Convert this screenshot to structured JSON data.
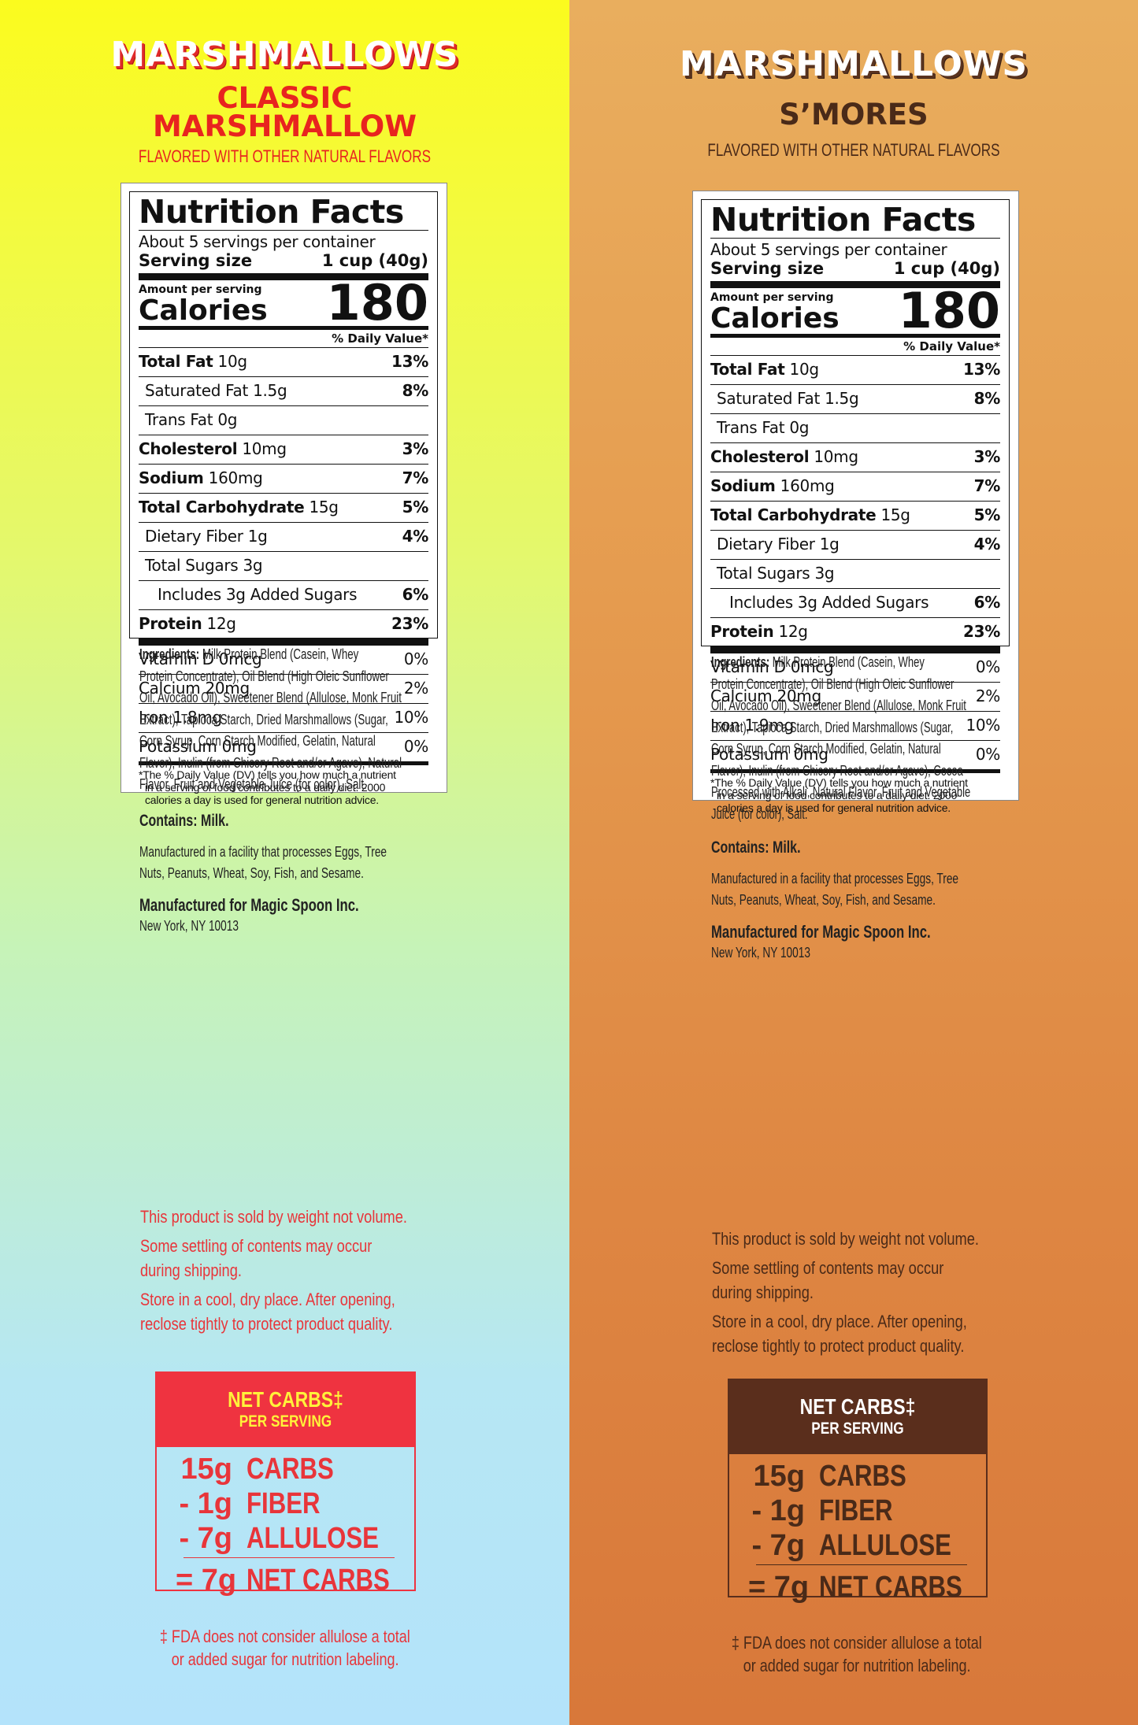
{
  "panels": [
    {
      "brand": "MARSHMALLOWS",
      "flavor_line1": "CLASSIC",
      "flavor_line2": "MARSHMALLOW",
      "natural": "FLAVORED WITH OTHER NATURAL FLAVORS",
      "nutrition": {
        "title": "Nutrition Facts",
        "servings": "About 5 servings per container",
        "serving_size_label": "Serving size",
        "serving_size_value": "1 cup (40g)",
        "amount_per_serving": "Amount per serving",
        "calories_label": "Calories",
        "calories_value": "180",
        "dv_header": "% Daily Value*",
        "total_fat": {
          "label": "Total Fat",
          "amount": "10g",
          "pct": "13%"
        },
        "saturated_fat": {
          "label": "Saturated Fat 1.5g",
          "pct": "8%"
        },
        "trans_fat": {
          "label": "Trans Fat 0g"
        },
        "cholesterol": {
          "label": "Cholesterol",
          "amount": "10mg",
          "pct": "3%"
        },
        "sodium": {
          "label": "Sodium",
          "amount": "160mg",
          "pct": "7%"
        },
        "total_carb": {
          "label": "Total Carbohydrate",
          "amount": "15g",
          "pct": "5%"
        },
        "fiber": {
          "label": "Dietary Fiber 1g",
          "pct": "4%"
        },
        "total_sugars": {
          "label": "Total Sugars 3g"
        },
        "added_sugars": {
          "label": "Includes 3g Added Sugars",
          "pct": "6%"
        },
        "protein": {
          "label": "Protein",
          "amount": "12g",
          "pct": "23%"
        },
        "vitamin_d": {
          "label": "Vitamin D 0mcg",
          "pct": "0%"
        },
        "calcium": {
          "label": "Calcium 20mg",
          "pct": "2%"
        },
        "iron": {
          "label": "Iron 1.8mg",
          "pct": "10%"
        },
        "potassium": {
          "label": "Potassium 0mg",
          "pct": "0%"
        },
        "footnote_l1": "*The % Daily Value (DV) tells you how much a nutrient",
        "footnote_l2": "in a serving of food contributes to a daily diet. 2000",
        "footnote_l3": "calories a day is used for general nutrition advice."
      },
      "ingredients_label": "Ingredients:",
      "ingredients_lines": [
        " Milk Protein Blend (Casein, Whey",
        "Protein Concentrate), Oil Blend (High Oleic Sunflower",
        "Oil, Avocado Oil), Sweetener Blend (Allulose, Monk Fruit",
        "Extract), Tapioca Starch, Dried Marshmallows (Sugar,",
        "Corn Syrup, Corn Starch Modified, Gelatin, Natural",
        "Flavor), Inulin (from Chicory Root and/or Agave), Natural",
        "Flavor, Fruit and Vegetable Juice (for color), Salt."
      ],
      "contains": "Contains: Milk.",
      "facility_l1": "Manufactured in a facility that processes Eggs, Tree",
      "facility_l2": "Nuts, Peanuts, Wheat, Soy, Fish, and Sesame.",
      "manufacturer": "Manufactured for Magic Spoon Inc.",
      "address": "New York, NY 10013",
      "note_weight": "This product is sold by weight not volume.",
      "note_settle_l1": "Some settling of contents may occur",
      "note_settle_l2": "during shipping.",
      "note_store_l1": "Store in a cool, dry place. After opening,",
      "note_store_l2": "reclose tightly to protect product quality.",
      "net_title": "NET CARBS‡",
      "net_sub": "PER SERVING",
      "net_lines": [
        {
          "num": "15g",
          "txt": "CARBS"
        },
        {
          "num": "- 1g",
          "txt": "FIBER"
        },
        {
          "num": "- 7g",
          "txt": "ALLULOSE"
        }
      ],
      "net_total": {
        "num": "= 7g",
        "txt": "NET CARBS"
      },
      "fda_l1": "‡ FDA does not consider allulose a total",
      "fda_l2": "or added sugar for nutrition labeling.",
      "colors": {
        "accent": "#e8241f",
        "notes": "#e8353a",
        "net_header_bg": "#ef3340",
        "net_header_text": "#fff23a"
      }
    },
    {
      "brand": "MARSHMALLOWS",
      "flavor_line1": "S’MORES",
      "flavor_line2": "",
      "natural": "FLAVORED WITH OTHER NATURAL FLAVORS",
      "nutrition": {
        "title": "Nutrition Facts",
        "servings": "About 5 servings per container",
        "serving_size_label": "Serving size",
        "serving_size_value": "1 cup (40g)",
        "amount_per_serving": "Amount per serving",
        "calories_label": "Calories",
        "calories_value": "180",
        "dv_header": "% Daily Value*",
        "total_fat": {
          "label": "Total Fat",
          "amount": "10g",
          "pct": "13%"
        },
        "saturated_fat": {
          "label": "Saturated Fat 1.5g",
          "pct": "8%"
        },
        "trans_fat": {
          "label": "Trans Fat 0g"
        },
        "cholesterol": {
          "label": "Cholesterol",
          "amount": "10mg",
          "pct": "3%"
        },
        "sodium": {
          "label": "Sodium",
          "amount": "160mg",
          "pct": "7%"
        },
        "total_carb": {
          "label": "Total Carbohydrate",
          "amount": "15g",
          "pct": "5%"
        },
        "fiber": {
          "label": "Dietary Fiber 1g",
          "pct": "4%"
        },
        "total_sugars": {
          "label": "Total Sugars 3g"
        },
        "added_sugars": {
          "label": "Includes 3g Added Sugars",
          "pct": "6%"
        },
        "protein": {
          "label": "Protein",
          "amount": "12g",
          "pct": "23%"
        },
        "vitamin_d": {
          "label": "Vitamin D 0mcg",
          "pct": "0%"
        },
        "calcium": {
          "label": "Calcium 20mg",
          "pct": "2%"
        },
        "iron": {
          "label": "Iron 1.9mg",
          "pct": "10%"
        },
        "potassium": {
          "label": "Potassium 0mg",
          "pct": "0%"
        },
        "footnote_l1": "*The % Daily Value (DV) tells you how much a nutrient",
        "footnote_l2": "in a serving of food contributes to a daily diet. 2000",
        "footnote_l3": "calories a day is used for general nutrition advice."
      },
      "ingredients_label": "Ingredients:",
      "ingredients_lines": [
        " Milk Protein Blend (Casein, Whey",
        "Protein Concentrate), Oil Blend (High Oleic Sunflower",
        "Oil, Avocado Oil), Sweetener Blend (Allulose, Monk Fruit",
        "Extract), Tapioca Starch, Dried Marshmallows (Sugar,",
        "Corn Syrup, Corn Starch Modified, Gelatin, Natural",
        "Flavor), Inulin (from Chicory Root and/or Agave), Cocoa",
        "Processed with Alkali, Natural Flavor, Fruit and Vegetable",
        "Juice (for color), Salt."
      ],
      "contains": "Contains: Milk.",
      "facility_l1": "Manufactured in a facility that processes Eggs, Tree",
      "facility_l2": "Nuts, Peanuts, Wheat, Soy, Fish, and Sesame.",
      "manufacturer": "Manufactured for Magic Spoon Inc.",
      "address": "New York, NY 10013",
      "note_weight": "This product is sold by weight not volume.",
      "note_settle_l1": "Some settling of contents may occur",
      "note_settle_l2": "during shipping.",
      "note_store_l1": "Store in a cool, dry place. After opening,",
      "note_store_l2": "reclose tightly to protect product quality.",
      "net_title": "NET CARBS‡",
      "net_sub": "PER SERVING",
      "net_lines": [
        {
          "num": "15g",
          "txt": "CARBS"
        },
        {
          "num": "- 1g",
          "txt": "FIBER"
        },
        {
          "num": "- 7g",
          "txt": "ALLULOSE"
        }
      ],
      "net_total": {
        "num": "= 7g",
        "txt": "NET CARBS"
      },
      "fda_l1": "‡ FDA does not consider allulose a total",
      "fda_l2": "or added sugar for nutrition labeling.",
      "colors": {
        "accent": "#4a2a18",
        "notes": "#4a2a18",
        "net_header_bg": "#5a2e1c",
        "net_header_text": "#ffffff"
      }
    }
  ]
}
